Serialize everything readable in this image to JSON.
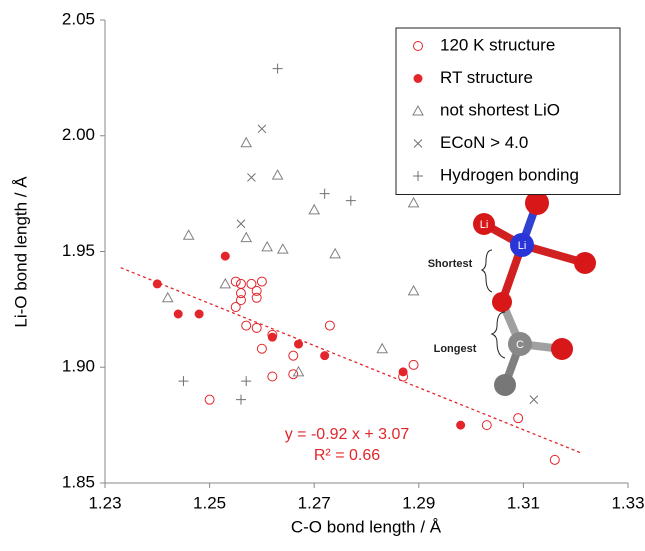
{
  "chart_data": {
    "type": "scatter",
    "x_label": "C-O bond length / Å",
    "y_label": "Li-O bond length / Å",
    "xlim": [
      1.23,
      1.33
    ],
    "xticks": [
      1.23,
      1.25,
      1.27,
      1.29,
      1.31,
      1.33
    ],
    "ylim": [
      1.85,
      2.05
    ],
    "yticks": [
      1.85,
      {
        "value": 1.9,
        "label": "1.90"
      },
      1.95,
      {
        "value": 2.0,
        "label": "2.00"
      },
      2.05
    ],
    "legend": "upper right",
    "series": [
      {
        "name": "120 K structure",
        "color": "#e3262b",
        "marker": "open-circle",
        "x": [
          1.255,
          1.256,
          1.256,
          1.256,
          1.255,
          1.258,
          1.259,
          1.26,
          1.259,
          1.257,
          1.259,
          1.26,
          1.262,
          1.266,
          1.273,
          1.262,
          1.25,
          1.266,
          1.289,
          1.287,
          1.303,
          1.309,
          1.316
        ],
        "values": [
          1.937,
          1.936,
          1.932,
          1.929,
          1.926,
          1.936,
          1.933,
          1.937,
          1.93,
          1.918,
          1.917,
          1.908,
          1.914,
          1.905,
          1.918,
          1.896,
          1.886,
          1.897,
          1.901,
          1.896,
          1.875,
          1.878,
          1.86
        ]
      },
      {
        "name": "RT structure",
        "color": "#e3262b",
        "marker": "filled-circle",
        "x": [
          1.24,
          1.244,
          1.248,
          1.253,
          1.262,
          1.267,
          1.272,
          1.287,
          1.298
        ],
        "values": [
          1.936,
          1.923,
          1.923,
          1.948,
          1.913,
          1.91,
          1.905,
          1.898,
          1.875
        ]
      },
      {
        "name": "not shortest LiO",
        "color": "#808080",
        "marker": "triangle",
        "x": [
          1.257,
          1.263,
          1.246,
          1.257,
          1.261,
          1.264,
          1.253,
          1.242,
          1.27,
          1.274,
          1.289,
          1.289,
          1.267,
          1.283
        ],
        "values": [
          1.997,
          1.983,
          1.957,
          1.956,
          1.952,
          1.951,
          1.936,
          1.93,
          1.968,
          1.949,
          1.971,
          1.933,
          1.898,
          1.908
        ]
      },
      {
        "name": "ECoN > 4.0",
        "color": "#707070",
        "marker": "cross",
        "x": [
          1.26,
          1.258,
          1.256,
          1.312
        ],
        "values": [
          2.003,
          1.982,
          1.962,
          1.886
        ]
      },
      {
        "name": "Hydrogen bonding",
        "color": "#707070",
        "marker": "plus",
        "x": [
          1.263,
          1.272,
          1.277,
          1.245,
          1.257,
          1.256
        ],
        "values": [
          2.029,
          1.975,
          1.972,
          1.894,
          1.894,
          1.886
        ]
      }
    ],
    "trendline": {
      "color": "#e3262b",
      "x": [
        1.233,
        1.321
      ],
      "values": [
        1.943,
        1.863
      ]
    },
    "annotations": [
      "y = -0.92 x + 3.07",
      "R² = 0.66"
    ],
    "inset": {
      "labels": [
        "Li",
        "Li",
        "C",
        "Shortest",
        "Longest"
      ]
    }
  }
}
